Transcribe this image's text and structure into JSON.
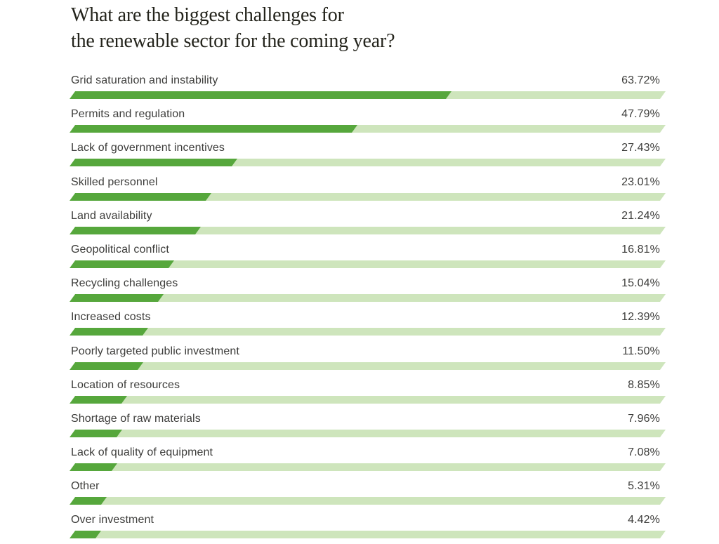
{
  "title": {
    "line1": "What are the biggest challenges for",
    "line2": "the renewable sector for the coming year?"
  },
  "chart_data": {
    "type": "bar",
    "orientation": "horizontal",
    "title": "What are the biggest challenges for the renewable sector for the coming year?",
    "xlabel": "",
    "ylabel": "",
    "xlim": [
      0,
      100
    ],
    "grid": false,
    "legend": false,
    "categories": [
      "Grid saturation and instability",
      "Permits and regulation",
      "Lack of government incentives",
      "Skilled personnel",
      "Land availability",
      "Geopolitical conflict",
      "Recycling challenges",
      "Increased costs",
      "Poorly targeted public investment",
      "Location of resources",
      "Shortage of raw materials",
      "Lack of quality of equipment",
      "Other",
      "Over investment"
    ],
    "values": [
      63.72,
      47.79,
      27.43,
      23.01,
      21.24,
      16.81,
      15.04,
      12.39,
      11.5,
      8.85,
      7.96,
      7.08,
      5.31,
      4.42
    ],
    "value_labels": [
      "63.72%",
      "47.79%",
      "27.43%",
      "23.01%",
      "21.24%",
      "16.81%",
      "15.04%",
      "12.39%",
      "11.50%",
      "8.85%",
      "7.96%",
      "7.08%",
      "5.31%",
      "4.42%"
    ],
    "colors": {
      "bar_fill": "#56a73c",
      "bar_track": "#cee5bc",
      "label_text": "#3d3d3b",
      "title_text": "#24241c"
    }
  }
}
